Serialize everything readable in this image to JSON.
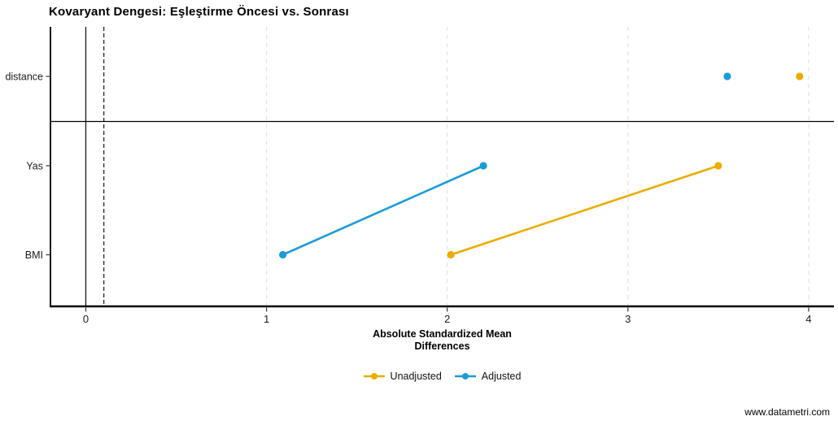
{
  "page": {
    "watermark": "www.datametri.com"
  },
  "chart_data": {
    "type": "scatter",
    "subtype": "love-plot-covariate-balance",
    "title": "Kovaryant Dengesi: Eşleştirme Öncesi vs. Sonrası",
    "xlabel_lines": [
      "Absolute Standardized Mean",
      "Differences"
    ],
    "ylabel": "",
    "categories": [
      "distance",
      "Yas",
      "BMI"
    ],
    "series": [
      {
        "name": "Unadjusted",
        "color": "#ECAC00",
        "values": [
          3.95,
          3.5,
          2.02
        ]
      },
      {
        "name": "Adjusted",
        "color": "#1B9CD8",
        "values": [
          3.55,
          2.2,
          1.09
        ]
      }
    ],
    "connected_categories": [
      "Yas",
      "BMI"
    ],
    "reference_lines": [
      {
        "x": 0,
        "style": "solid",
        "color": "#000000"
      },
      {
        "x": 0.1,
        "style": "dashed",
        "color": "#000000"
      }
    ],
    "separator_after_category": "distance",
    "x_ticks": [
      "0",
      "1",
      "2",
      "3",
      "4"
    ],
    "xlim": [
      -0.2,
      4.14
    ],
    "grid": "vertical dashed gridlines at integer ticks",
    "grid_color": "#E3E3E3",
    "legend_position": "bottom-center",
    "legend": [
      "Unadjusted",
      "Adjusted"
    ]
  }
}
